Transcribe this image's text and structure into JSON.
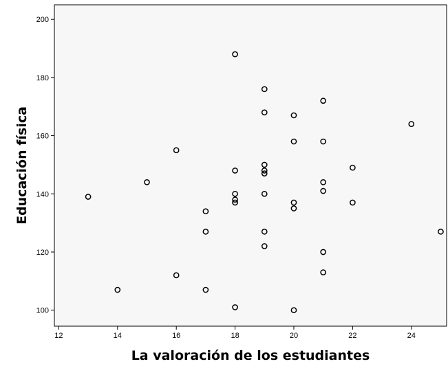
{
  "chart_data": {
    "type": "scatter",
    "title": "",
    "xlabel": "La valoración de los estudiantes",
    "ylabel": "Educación física",
    "xlim": [
      11.85,
      25.2
    ],
    "ylim": [
      94.5,
      205
    ],
    "x_ticks": [
      12,
      14,
      16,
      18,
      20,
      22,
      24
    ],
    "y_ticks": [
      100,
      120,
      140,
      160,
      180,
      200
    ],
    "grid": false,
    "legend": "none",
    "colors": {
      "plot_background": "#f7f7f7",
      "marker_stroke": "#000000",
      "axis": "#000000"
    },
    "points": [
      {
        "x": 13,
        "y": 139
      },
      {
        "x": 14,
        "y": 107
      },
      {
        "x": 15,
        "y": 144
      },
      {
        "x": 16,
        "y": 155
      },
      {
        "x": 16,
        "y": 112
      },
      {
        "x": 17,
        "y": 134
      },
      {
        "x": 17,
        "y": 127
      },
      {
        "x": 17,
        "y": 107
      },
      {
        "x": 18,
        "y": 188
      },
      {
        "x": 18,
        "y": 148
      },
      {
        "x": 18,
        "y": 140
      },
      {
        "x": 18,
        "y": 138
      },
      {
        "x": 18,
        "y": 137
      },
      {
        "x": 18,
        "y": 101
      },
      {
        "x": 19,
        "y": 176
      },
      {
        "x": 19,
        "y": 168
      },
      {
        "x": 19,
        "y": 150
      },
      {
        "x": 19,
        "y": 148
      },
      {
        "x": 19,
        "y": 147
      },
      {
        "x": 19,
        "y": 140
      },
      {
        "x": 19,
        "y": 127
      },
      {
        "x": 19,
        "y": 122
      },
      {
        "x": 20,
        "y": 167
      },
      {
        "x": 20,
        "y": 158
      },
      {
        "x": 20,
        "y": 137
      },
      {
        "x": 20,
        "y": 135
      },
      {
        "x": 20,
        "y": 100
      },
      {
        "x": 21,
        "y": 172
      },
      {
        "x": 21,
        "y": 158
      },
      {
        "x": 21,
        "y": 144
      },
      {
        "x": 21,
        "y": 141
      },
      {
        "x": 21,
        "y": 120
      },
      {
        "x": 21,
        "y": 113
      },
      {
        "x": 22,
        "y": 149
      },
      {
        "x": 22,
        "y": 137
      },
      {
        "x": 24,
        "y": 164
      },
      {
        "x": 25,
        "y": 127
      }
    ]
  }
}
